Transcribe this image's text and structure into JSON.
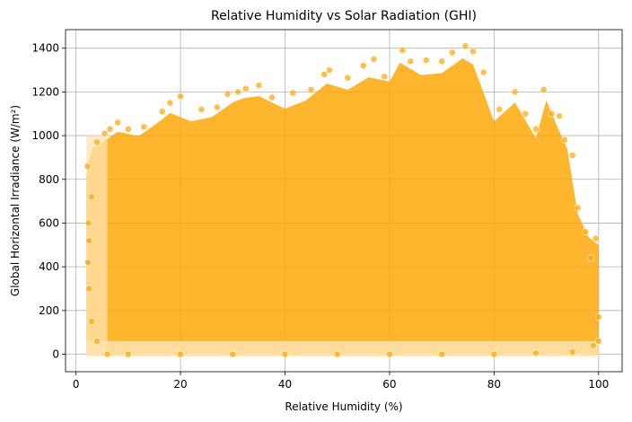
{
  "chart_data": {
    "type": "scatter",
    "title": "Relative Humidity vs Solar Radiation (GHI)",
    "xlabel": "Relative Humidity (%)",
    "ylabel": "Global Horizontal Irradiance (W/m²)",
    "xlim": [
      -2,
      104.5
    ],
    "ylim": [
      -80,
      1485
    ],
    "xticks": [
      0,
      20,
      40,
      60,
      80,
      100
    ],
    "yticks": [
      0,
      200,
      400,
      600,
      800,
      1000,
      1200,
      1400
    ],
    "xtick_labels": [
      "0",
      "20",
      "40",
      "60",
      "80",
      "100"
    ],
    "ytick_labels": [
      "0",
      "200",
      "400",
      "600",
      "800",
      "1000",
      "1200",
      "1400"
    ],
    "grid": true,
    "marker_color": "#FFA500",
    "marker_alpha": 0.7,
    "marker_edge_color": "#ffffff",
    "upper_envelope": [
      [
        2,
        860
      ],
      [
        3,
        980
      ],
      [
        5,
        1010
      ],
      [
        8,
        1060
      ],
      [
        12,
        1040
      ],
      [
        16,
        1110
      ],
      [
        18,
        1150
      ],
      [
        22,
        1110
      ],
      [
        26,
        1130
      ],
      [
        30,
        1200
      ],
      [
        32,
        1220
      ],
      [
        35,
        1230
      ],
      [
        40,
        1170
      ],
      [
        44,
        1210
      ],
      [
        48,
        1290
      ],
      [
        52,
        1260
      ],
      [
        56,
        1320
      ],
      [
        60,
        1300
      ],
      [
        62,
        1390
      ],
      [
        66,
        1330
      ],
      [
        70,
        1340
      ],
      [
        74,
        1410
      ],
      [
        76,
        1380
      ],
      [
        80,
        1110
      ],
      [
        84,
        1200
      ],
      [
        88,
        1030
      ],
      [
        90,
        1210
      ],
      [
        92,
        1090
      ],
      [
        94,
        980
      ],
      [
        96,
        670
      ],
      [
        98,
        560
      ],
      [
        100,
        520
      ]
    ],
    "points": [
      [
        2.2,
        860
      ],
      [
        2.5,
        520
      ],
      [
        3.0,
        720
      ],
      [
        4.0,
        970
      ],
      [
        5.5,
        1010
      ],
      [
        6.5,
        1030
      ],
      [
        8.0,
        1060
      ],
      [
        10.0,
        1030
      ],
      [
        13.0,
        1040
      ],
      [
        16.5,
        1110
      ],
      [
        18.0,
        1150
      ],
      [
        20.0,
        1180
      ],
      [
        24.0,
        1120
      ],
      [
        27.0,
        1130
      ],
      [
        29.0,
        1190
      ],
      [
        31.0,
        1200
      ],
      [
        32.5,
        1215
      ],
      [
        35.0,
        1230
      ],
      [
        37.5,
        1175
      ],
      [
        41.5,
        1195
      ],
      [
        45.0,
        1210
      ],
      [
        47.5,
        1280
      ],
      [
        48.5,
        1300
      ],
      [
        52.0,
        1265
      ],
      [
        55.0,
        1320
      ],
      [
        57.0,
        1350
      ],
      [
        59.0,
        1270
      ],
      [
        62.5,
        1390
      ],
      [
        64.0,
        1340
      ],
      [
        67.0,
        1345
      ],
      [
        70.0,
        1340
      ],
      [
        72.0,
        1380
      ],
      [
        74.5,
        1410
      ],
      [
        76.0,
        1385
      ],
      [
        78.0,
        1290
      ],
      [
        81.0,
        1120
      ],
      [
        84.0,
        1200
      ],
      [
        86.0,
        1100
      ],
      [
        88.0,
        1030
      ],
      [
        89.5,
        1210
      ],
      [
        91.0,
        1100
      ],
      [
        92.5,
        1090
      ],
      [
        93.5,
        980
      ],
      [
        95.0,
        910
      ],
      [
        96.0,
        670
      ],
      [
        97.5,
        560
      ],
      [
        98.5,
        440
      ],
      [
        99.5,
        530
      ],
      [
        100.0,
        170
      ],
      [
        100.0,
        60
      ],
      [
        99.0,
        40
      ],
      [
        95.0,
        10
      ],
      [
        88.0,
        5
      ],
      [
        80.0,
        0
      ],
      [
        70.0,
        0
      ],
      [
        60.0,
        0
      ],
      [
        50.0,
        0
      ],
      [
        40.0,
        0
      ],
      [
        30.0,
        0
      ],
      [
        20.0,
        0
      ],
      [
        10.0,
        0
      ],
      [
        6.0,
        0
      ],
      [
        4.0,
        60
      ],
      [
        3.0,
        150
      ],
      [
        2.5,
        300
      ],
      [
        2.3,
        420
      ],
      [
        2.4,
        600
      ]
    ]
  }
}
